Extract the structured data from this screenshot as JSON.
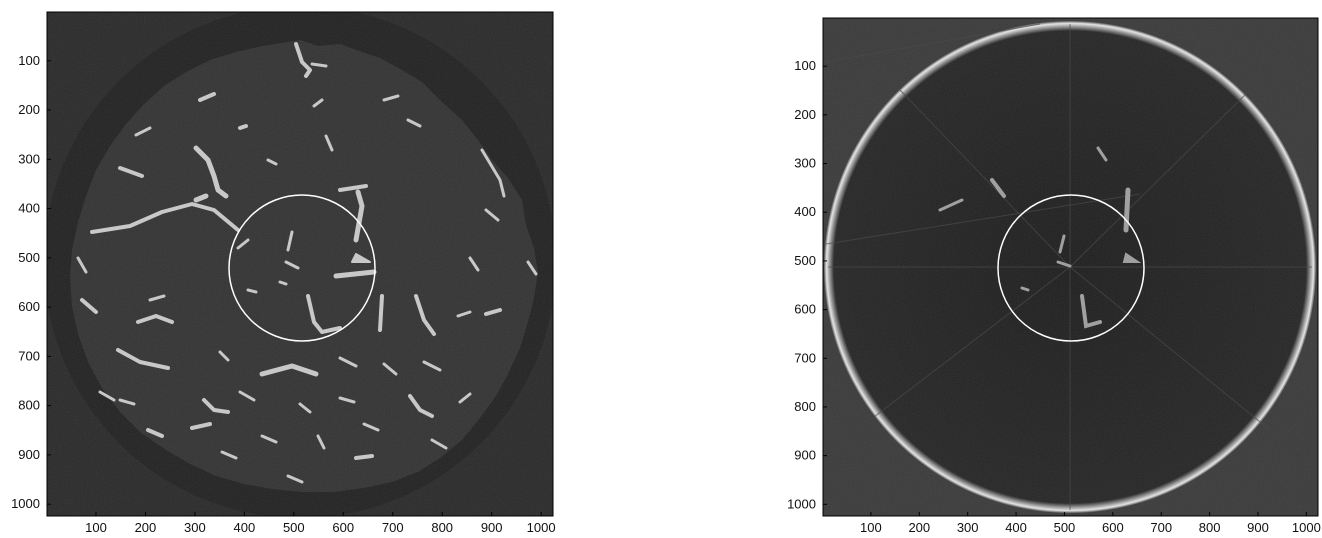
{
  "panels": [
    {
      "id": "left",
      "description_kind": "ct-slice-segmented",
      "x_ticks": [
        "100",
        "200",
        "300",
        "400",
        "500",
        "600",
        "700",
        "800",
        "900",
        "1000"
      ],
      "y_ticks": [
        "100",
        "200",
        "300",
        "400",
        "500",
        "600",
        "700",
        "800",
        "900",
        "1000"
      ],
      "x_range": [
        1,
        1024
      ],
      "y_range": [
        1,
        1024
      ],
      "roi_circle": {
        "center": [
          512,
          517
        ],
        "radius": 150
      }
    },
    {
      "id": "right",
      "description_kind": "ct-slice-reconstruction",
      "x_ticks": [
        "100",
        "200",
        "300",
        "400",
        "500",
        "600",
        "700",
        "800",
        "900",
        "1000"
      ],
      "y_ticks": [
        "100",
        "200",
        "300",
        "400",
        "500",
        "600",
        "700",
        "800",
        "900",
        "1000"
      ],
      "x_range": [
        1,
        1024
      ],
      "y_range": [
        1,
        1024
      ],
      "roi_circle": {
        "center": [
          512,
          517
        ],
        "radius": 150
      }
    }
  ],
  "colors": {
    "background": "#2b2b2b",
    "specimen": "#333333",
    "pores": "#c8c8c8",
    "circle": "#ffffff"
  }
}
